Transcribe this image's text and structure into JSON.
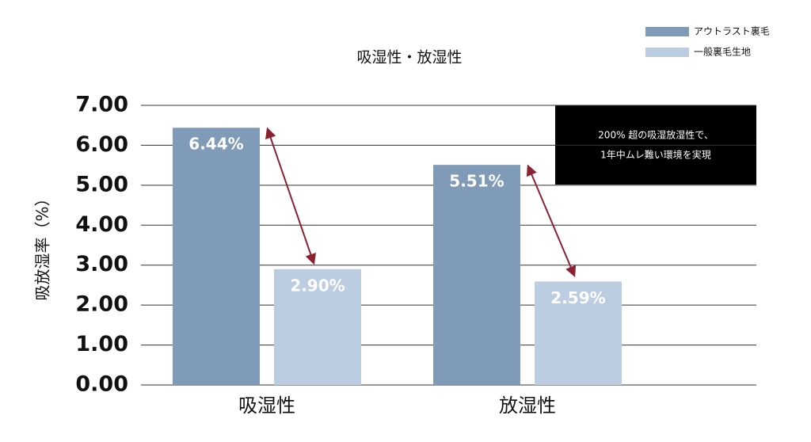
{
  "chart_data": {
    "type": "bar",
    "title": "吸湿性・放湿性",
    "y_label": "吸放湿率（%）",
    "categories": [
      "吸湿性",
      "放湿性"
    ],
    "series": [
      {
        "name": "アウトラスト裏毛",
        "color": "#7f9bb8",
        "values": [
          6.44,
          5.51
        ],
        "value_labels": [
          "6.44%",
          "5.51%"
        ]
      },
      {
        "name": "一般裏毛生地",
        "color": "#bccde2",
        "values": [
          2.9,
          2.59
        ],
        "value_labels": [
          "2.90%",
          "2.59%"
        ]
      }
    ],
    "ylim": [
      0,
      7
    ],
    "yticks": [
      {
        "value": 0,
        "label": "0.00"
      },
      {
        "value": 1,
        "label": "1.00"
      },
      {
        "value": 2,
        "label": "2.00"
      },
      {
        "value": 3,
        "label": "3.00"
      },
      {
        "value": 4,
        "label": "4.00"
      },
      {
        "value": 5,
        "label": "5.00"
      },
      {
        "value": 6,
        "label": "6.00"
      },
      {
        "value": 7,
        "label": "7.00"
      }
    ],
    "grid": true,
    "legend": "top-right",
    "annotation": [
      "200% 超の吸湿放湿性で、",
      "1年中ムレ難い環境を実現"
    ]
  }
}
